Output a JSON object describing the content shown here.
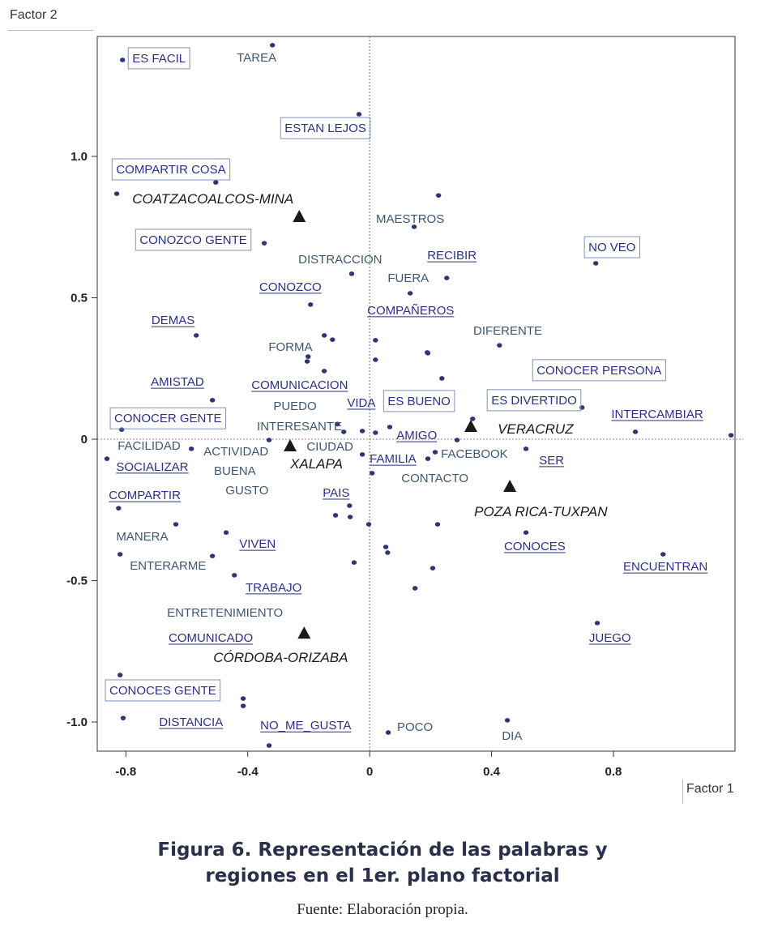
{
  "chart_data": {
    "type": "scatter",
    "xlabel": "Factor 1",
    "ylabel": "Factor 2",
    "xlim": [
      -0.894,
      1.199
    ],
    "ylim": [
      -1.103,
      1.424
    ],
    "xticks": [
      -0.8,
      -0.4,
      0,
      0.4,
      0.8
    ],
    "xtick_labels": [
      "-0.8",
      "-0.4",
      "0",
      "0.4",
      "0.8"
    ],
    "yticks": [
      1.0,
      0.5,
      0,
      -0.5,
      -1.0
    ],
    "ytick_labels": [
      "1.0",
      "0.5",
      "0",
      "-0.5",
      "-1.0"
    ],
    "grid": false,
    "reference_lines": [
      0,
      0
    ],
    "colors": {
      "point": "#2e3575",
      "plain": "#3f5670",
      "marked": "#2b2f86",
      "box": "#7f93b8",
      "region": "#1a1a1a"
    },
    "points": [
      [
        -0.811,
        1.341
      ],
      [
        -0.319,
        1.393
      ],
      [
        -0.035,
        1.149
      ],
      [
        -0.505,
        0.908
      ],
      [
        -0.83,
        0.868
      ],
      [
        -0.346,
        0.693
      ],
      [
        0.226,
        0.862
      ],
      [
        0.146,
        0.751
      ],
      [
        0.742,
        0.622
      ],
      [
        -0.059,
        0.585
      ],
      [
        0.253,
        0.57
      ],
      [
        0.133,
        0.516
      ],
      [
        -0.194,
        0.476
      ],
      [
        -0.569,
        0.367
      ],
      [
        -0.149,
        0.367
      ],
      [
        -0.122,
        0.352
      ],
      [
        0.019,
        0.35
      ],
      [
        0.189,
        0.307
      ],
      [
        0.191,
        0.304
      ],
      [
        0.426,
        0.332
      ],
      [
        -0.202,
        0.292
      ],
      [
        -0.205,
        0.275
      ],
      [
        0.019,
        0.281
      ],
      [
        -0.149,
        0.241
      ],
      [
        0.237,
        0.215
      ],
      [
        -0.516,
        0.138
      ],
      [
        0.697,
        0.112
      ],
      [
        -0.814,
        0.034
      ],
      [
        -0.106,
        0.054
      ],
      [
        -0.085,
        0.026
      ],
      [
        -0.024,
        0.029
      ],
      [
        0.019,
        0.023
      ],
      [
        0.066,
        0.043
      ],
      [
        0.338,
        0.072
      ],
      [
        0.872,
        0.026
      ],
      [
        1.186,
        0.014
      ],
      [
        0.287,
        -0.003
      ],
      [
        0.513,
        -0.034
      ],
      [
        0.215,
        -0.046
      ],
      [
        0.191,
        -0.069
      ],
      [
        -0.024,
        -0.054
      ],
      [
        0.008,
        -0.12
      ],
      [
        -0.585,
        -0.034
      ],
      [
        -0.862,
        -0.069
      ],
      [
        -0.33,
        -0.003
      ],
      [
        -0.824,
        -0.244
      ],
      [
        -0.636,
        -0.301
      ],
      [
        -0.066,
        -0.235
      ],
      [
        -0.112,
        -0.269
      ],
      [
        -0.064,
        -0.275
      ],
      [
        -0.003,
        -0.301
      ],
      [
        -0.471,
        -0.33
      ],
      [
        -0.819,
        -0.407
      ],
      [
        -0.516,
        -0.413
      ],
      [
        0.053,
        -0.381
      ],
      [
        0.059,
        -0.401
      ],
      [
        -0.051,
        -0.436
      ],
      [
        -0.444,
        -0.481
      ],
      [
        -0.819,
        -0.834
      ],
      [
        -0.415,
        -0.917
      ],
      [
        -0.415,
        -0.943
      ],
      [
        -0.809,
        -0.986
      ],
      [
        -0.33,
        -1.083
      ],
      [
        0.061,
        -1.037
      ],
      [
        0.223,
        -0.301
      ],
      [
        0.207,
        -0.456
      ],
      [
        0.149,
        -0.527
      ],
      [
        0.513,
        -0.33
      ],
      [
        0.963,
        -0.407
      ],
      [
        0.747,
        -0.65
      ],
      [
        0.452,
        -0.994
      ]
    ],
    "regions": [
      {
        "name": "COATZACOALCOS-MINA",
        "x": -0.231,
        "y": 0.788,
        "label_x": -0.779,
        "label_y": 0.851
      },
      {
        "name": "VERACRUZ",
        "x": 0.332,
        "y": 0.046,
        "label_x": 0.42,
        "label_y": 0.037
      },
      {
        "name": "XALAPA",
        "x": -0.261,
        "y": -0.023,
        "label_x": -0.261,
        "label_y": -0.086
      },
      {
        "name": "POZA RICA-TUXPAN",
        "x": 0.46,
        "y": -0.166,
        "label_x": 0.343,
        "label_y": -0.255
      },
      {
        "name": "CÓRDOBA-ORIZABA",
        "x": -0.215,
        "y": -0.685,
        "label_x": -0.513,
        "label_y": -0.771
      }
    ],
    "words": [
      {
        "text": "ES FACIL",
        "x": -0.779,
        "y": 1.347,
        "style": "box"
      },
      {
        "text": "TAREA",
        "x": -0.436,
        "y": 1.35,
        "style": "plain"
      },
      {
        "text": "ESTAN LEJOS",
        "x": -0.279,
        "y": 1.1,
        "style": "box"
      },
      {
        "text": "COMPARTIR COSA",
        "x": -0.832,
        "y": 0.954,
        "style": "box"
      },
      {
        "text": "MAESTROS",
        "x": 0.021,
        "y": 0.779,
        "style": "plain"
      },
      {
        "text": "CONOZCO GENTE",
        "x": -0.755,
        "y": 0.705,
        "style": "box"
      },
      {
        "text": "NO VEO",
        "x": 0.718,
        "y": 0.679,
        "style": "box"
      },
      {
        "text": "DISTRACCION",
        "x": -0.234,
        "y": 0.636,
        "style": "plain"
      },
      {
        "text": "RECIBIR",
        "x": 0.189,
        "y": 0.65,
        "style": "underline"
      },
      {
        "text": "FUERA",
        "x": 0.059,
        "y": 0.57,
        "style": "plain"
      },
      {
        "text": "CONOZCO",
        "x": -0.362,
        "y": 0.539,
        "style": "underline"
      },
      {
        "text": "COMPAÑEROS",
        "x": -0.008,
        "y": 0.456,
        "style": "underline"
      },
      {
        "text": "DEMAS",
        "x": -0.716,
        "y": 0.421,
        "style": "underline"
      },
      {
        "text": "DIFERENTE",
        "x": 0.34,
        "y": 0.384,
        "style": "plain"
      },
      {
        "text": "FORMA",
        "x": -0.332,
        "y": 0.327,
        "style": "plain"
      },
      {
        "text": "CONOCER PERSONA",
        "x": 0.548,
        "y": 0.244,
        "style": "box"
      },
      {
        "text": "COMUNICACION",
        "x": -0.388,
        "y": 0.192,
        "style": "underline"
      },
      {
        "text": "AMISTAD",
        "x": -0.718,
        "y": 0.203,
        "style": "underline"
      },
      {
        "text": "ES BUENO",
        "x": 0.059,
        "y": 0.135,
        "style": "box"
      },
      {
        "text": "ES DIVERTIDO",
        "x": 0.399,
        "y": 0.138,
        "style": "box"
      },
      {
        "text": "VIDA",
        "x": -0.074,
        "y": 0.129,
        "style": "underline"
      },
      {
        "text": "PUEDO",
        "x": -0.316,
        "y": 0.117,
        "style": "plain"
      },
      {
        "text": "INTERCAMBIAR",
        "x": 0.793,
        "y": 0.089,
        "style": "underline"
      },
      {
        "text": "CONOCER GENTE",
        "x": -0.838,
        "y": 0.074,
        "style": "box"
      },
      {
        "text": "INTERESANTE",
        "x": -0.37,
        "y": 0.046,
        "style": "plain"
      },
      {
        "text": "AMIGO",
        "x": 0.088,
        "y": 0.014,
        "style": "underline"
      },
      {
        "text": "FACILIDAD",
        "x": -0.827,
        "y": -0.023,
        "style": "plain"
      },
      {
        "text": "ACTIVIDAD",
        "x": -0.545,
        "y": -0.043,
        "style": "plain"
      },
      {
        "text": "CIUDAD",
        "x": -0.207,
        "y": -0.026,
        "style": "plain"
      },
      {
        "text": "FACEBOOK",
        "x": 0.234,
        "y": -0.052,
        "style": "plain"
      },
      {
        "text": "FAMILIA",
        "x": 0.0,
        "y": -0.069,
        "style": "underline"
      },
      {
        "text": "SER",
        "x": 0.556,
        "y": -0.074,
        "style": "underline"
      },
      {
        "text": "SOCIALIZAR",
        "x": -0.832,
        "y": -0.097,
        "style": "underline"
      },
      {
        "text": "BUENA",
        "x": -0.511,
        "y": -0.112,
        "style": "plain"
      },
      {
        "text": "CONTACTO",
        "x": 0.104,
        "y": -0.138,
        "style": "plain"
      },
      {
        "text": "GUSTO",
        "x": -0.473,
        "y": -0.181,
        "style": "plain"
      },
      {
        "text": "PAIS",
        "x": -0.154,
        "y": -0.189,
        "style": "underline"
      },
      {
        "text": "COMPARTIR",
        "x": -0.856,
        "y": -0.198,
        "style": "underline"
      },
      {
        "text": "MANERA",
        "x": -0.832,
        "y": -0.344,
        "style": "plain"
      },
      {
        "text": "VIVEN",
        "x": -0.428,
        "y": -0.37,
        "style": "underline"
      },
      {
        "text": "CONOCES",
        "x": 0.441,
        "y": -0.378,
        "style": "underline"
      },
      {
        "text": "ENTERARME",
        "x": -0.787,
        "y": -0.447,
        "style": "plain"
      },
      {
        "text": "ENCUENTRAN",
        "x": 0.832,
        "y": -0.45,
        "style": "underline"
      },
      {
        "text": "TRABAJO",
        "x": -0.407,
        "y": -0.524,
        "style": "underline"
      },
      {
        "text": "ENTRETENIMIENTO",
        "x": -0.665,
        "y": -0.613,
        "style": "plain"
      },
      {
        "text": "JUEGO",
        "x": 0.72,
        "y": -0.702,
        "style": "underline"
      },
      {
        "text": "COMUNICADO",
        "x": -0.66,
        "y": -0.702,
        "style": "underline"
      },
      {
        "text": "CONOCES GENTE",
        "x": -0.854,
        "y": -0.888,
        "style": "box"
      },
      {
        "text": "DISTANCIA",
        "x": -0.691,
        "y": -1.0,
        "style": "underline"
      },
      {
        "text": "NO_ME_GUSTA",
        "x": -0.359,
        "y": -1.012,
        "style": "underline"
      },
      {
        "text": "POCO",
        "x": 0.09,
        "y": -1.017,
        "style": "plain"
      },
      {
        "text": "DIA",
        "x": 0.434,
        "y": -1.049,
        "style": "plain"
      }
    ]
  },
  "caption": {
    "line1": "Figura 6. Representación de las palabras y",
    "line2": "regiones en el 1er. plano factorial",
    "source": "Fuente: Elaboración propia."
  }
}
